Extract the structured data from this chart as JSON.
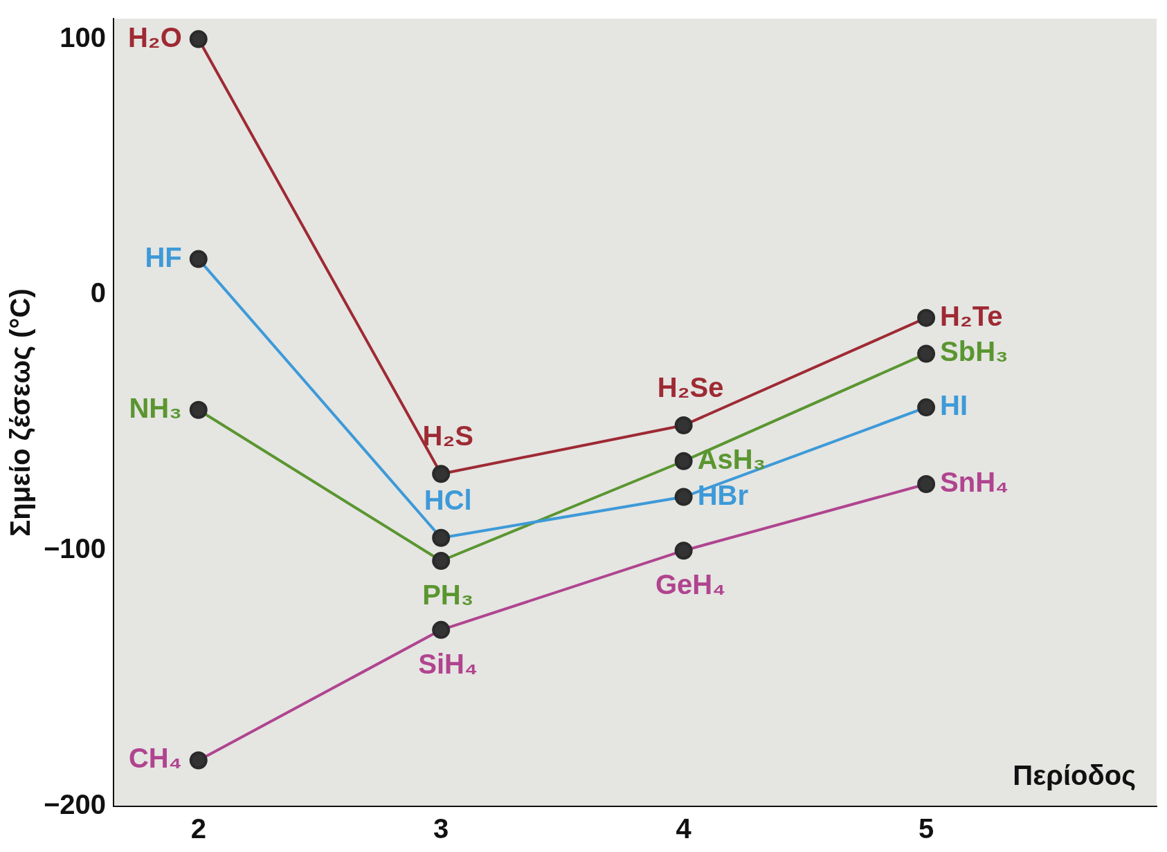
{
  "chart_data": {
    "type": "line",
    "ylabel": "Σημείο ζέσεως (°C)",
    "xlabel": "Περίοδος",
    "x": [
      2,
      3,
      4,
      5
    ],
    "xlim": [
      1.65,
      5.95
    ],
    "xticks": [
      2,
      3,
      4,
      5
    ],
    "ylim": [
      -200,
      108
    ],
    "yticks": [
      {
        "value": 100,
        "label": "100"
      },
      {
        "value": 0,
        "label": "0"
      },
      {
        "value": -100,
        "label": "−100"
      },
      {
        "value": -200,
        "label": "−200"
      }
    ],
    "marker": "circle",
    "grid": false,
    "legend": false,
    "series": [
      {
        "color": "#9e2a33",
        "values": [
          100,
          -70,
          -51,
          -9
        ]
      },
      {
        "color": "#3d9ad8",
        "values": [
          14,
          -95,
          -79,
          -44
        ]
      },
      {
        "color": "#5a9630",
        "values": [
          -45,
          -104,
          -65,
          -23
        ]
      },
      {
        "color": "#b0448f",
        "values": [
          -182,
          -131,
          -100,
          -74
        ]
      }
    ],
    "annotations": [
      {
        "text": "H₂O",
        "x": 2,
        "y": 100
      },
      {
        "text": "HF",
        "x": 2,
        "y": 14
      },
      {
        "text": "NH₃",
        "x": 2,
        "y": -45
      },
      {
        "text": "CH₄",
        "x": 2,
        "y": -182
      },
      {
        "text": "H₂S",
        "x": 3,
        "y": -70
      },
      {
        "text": "HCl",
        "x": 3,
        "y": -95
      },
      {
        "text": "PH₃",
        "x": 3,
        "y": -104
      },
      {
        "text": "SiH₄",
        "x": 3,
        "y": -131
      },
      {
        "text": "H₂Se",
        "x": 4,
        "y": -51
      },
      {
        "text": "AsH₃",
        "x": 4,
        "y": -65
      },
      {
        "text": "HBr",
        "x": 4,
        "y": -79
      },
      {
        "text": "GeH₄",
        "x": 4,
        "y": -100
      },
      {
        "text": "H₂Te",
        "x": 5,
        "y": -9
      },
      {
        "text": "SbH₃",
        "x": 5,
        "y": -23
      },
      {
        "text": "HI",
        "x": 5,
        "y": -44
      },
      {
        "text": "SnH₄",
        "x": 5,
        "y": -74
      }
    ]
  }
}
